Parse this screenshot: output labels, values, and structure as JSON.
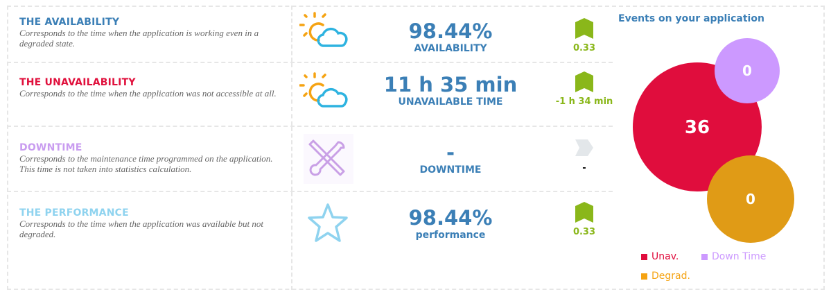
{
  "rows": [
    {
      "title": "THE AVAILABILITY",
      "title_color": "#3b7fb6",
      "description": "Corresponds to the time when the application is working even in a degraded state.",
      "icon": "sun-cloud-icon",
      "value": "98.44%",
      "label": "AVAILABILITY",
      "trend": "0.33",
      "trend_direction": "up"
    },
    {
      "title": "THE UNAVAILABILITY",
      "title_color": "#e0103c",
      "description": "Corresponds to the time when the application was not accessible at all.",
      "icon": "sun-cloud-icon",
      "value": "11 h 35 min",
      "label": "UNAVAILABLE TIME",
      "trend": "-1 h 34 min",
      "trend_direction": "up"
    },
    {
      "title": "DOWNTIME",
      "title_color": "#c99cf0",
      "description": "Corresponds to the maintenance time programmed on the application. This time is not taken into statistics calculation.",
      "icon": "tools-icon",
      "value": "-",
      "label": "DOWNTIME",
      "trend": "-",
      "trend_direction": "neutral"
    },
    {
      "title": "THE PERFORMANCE",
      "title_color": "#8fd3ef",
      "description": "Corresponds to the time when the application was available but not degraded.",
      "icon": "star-icon",
      "value": "98.44%",
      "label": "performance",
      "trend": "0.33",
      "trend_direction": "up"
    }
  ],
  "chart_data": {
    "type": "bubble",
    "title": "Events on your application",
    "series": [
      {
        "name": "Unav.",
        "value": 36,
        "color": "#e00d3d"
      },
      {
        "name": "Down Time",
        "value": 0,
        "color": "#cc99ff"
      },
      {
        "name": "Degrad.",
        "value": 0,
        "color": "#e09b16"
      }
    ]
  }
}
